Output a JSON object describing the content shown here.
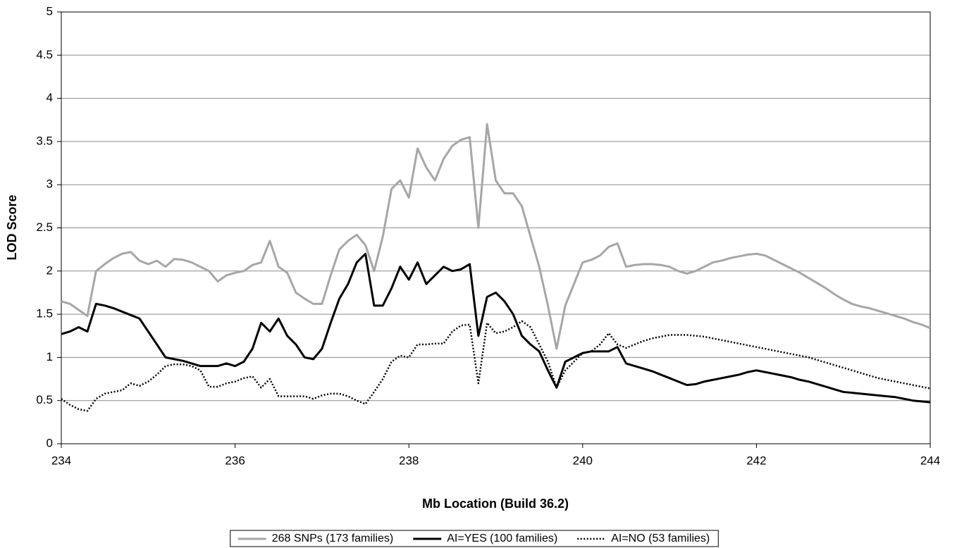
{
  "chart_data": {
    "type": "line",
    "x_label": "Mb Location (Build 36.2)",
    "y_label": "LOD Score",
    "xlim": [
      234,
      244
    ],
    "xticks": [
      234,
      236,
      238,
      240,
      242,
      244
    ],
    "ylim": [
      0,
      5
    ],
    "yticks": [
      0,
      0.5,
      1,
      1.5,
      2,
      2.5,
      3,
      3.5,
      4,
      4.5,
      5
    ],
    "grid": true,
    "legend": "bottom",
    "x": [
      234.0,
      234.1,
      234.2,
      234.3,
      234.4,
      234.5,
      234.6,
      234.7,
      234.8,
      234.9,
      235.0,
      235.1,
      235.2,
      235.3,
      235.4,
      235.5,
      235.6,
      235.7,
      235.8,
      235.9,
      236.0,
      236.1,
      236.2,
      236.3,
      236.4,
      236.5,
      236.6,
      236.7,
      236.8,
      236.9,
      237.0,
      237.1,
      237.2,
      237.3,
      237.4,
      237.5,
      237.6,
      237.7,
      237.8,
      237.9,
      238.0,
      238.1,
      238.2,
      238.3,
      238.4,
      238.5,
      238.6,
      238.7,
      238.8,
      238.9,
      239.0,
      239.1,
      239.2,
      239.3,
      239.4,
      239.5,
      239.6,
      239.7,
      239.8,
      239.9,
      240.0,
      240.1,
      240.2,
      240.3,
      240.4,
      240.5,
      240.6,
      240.7,
      240.8,
      240.9,
      241.0,
      241.1,
      241.2,
      241.3,
      241.4,
      241.5,
      241.6,
      241.7,
      241.8,
      241.9,
      242.0,
      242.1,
      242.2,
      242.3,
      242.4,
      242.5,
      242.6,
      242.7,
      242.8,
      242.9,
      243.0,
      243.1,
      243.2,
      243.3,
      243.4,
      243.5,
      243.6,
      243.7,
      243.8,
      243.9,
      244.0
    ],
    "series": [
      {
        "name": "268 SNPs (173 families)",
        "color": "#a6a6a6",
        "line_style": "solid",
        "values": [
          1.65,
          1.62,
          1.55,
          1.48,
          2.0,
          2.08,
          2.15,
          2.2,
          2.22,
          2.12,
          2.08,
          2.12,
          2.05,
          2.14,
          2.13,
          2.1,
          2.05,
          2.0,
          1.88,
          1.95,
          1.98,
          2.0,
          2.07,
          2.1,
          2.35,
          2.05,
          1.98,
          1.75,
          1.68,
          1.62,
          1.62,
          1.95,
          2.25,
          2.35,
          2.42,
          2.3,
          2.0,
          2.4,
          2.95,
          3.05,
          2.85,
          3.42,
          3.2,
          3.05,
          3.3,
          3.45,
          3.52,
          3.55,
          2.5,
          3.7,
          3.05,
          2.9,
          2.9,
          2.75,
          2.4,
          2.05,
          1.6,
          1.1,
          1.6,
          1.85,
          2.1,
          2.13,
          2.18,
          2.28,
          2.32,
          2.05,
          2.07,
          2.08,
          2.08,
          2.07,
          2.05,
          2.0,
          1.97,
          2.0,
          2.05,
          2.1,
          2.12,
          2.15,
          2.17,
          2.19,
          2.2,
          2.18,
          2.13,
          2.08,
          2.03,
          1.98,
          1.92,
          1.86,
          1.8,
          1.73,
          1.67,
          1.62,
          1.59,
          1.57,
          1.54,
          1.51,
          1.48,
          1.45,
          1.41,
          1.38,
          1.34
        ]
      },
      {
        "name": "AI=YES (100 families)",
        "color": "#000000",
        "line_style": "solid",
        "values": [
          1.27,
          1.3,
          1.35,
          1.3,
          1.62,
          1.6,
          1.57,
          1.53,
          1.49,
          1.45,
          1.3,
          1.15,
          1.0,
          0.98,
          0.96,
          0.93,
          0.9,
          0.9,
          0.9,
          0.93,
          0.9,
          0.95,
          1.1,
          1.4,
          1.3,
          1.45,
          1.25,
          1.15,
          1.0,
          0.98,
          1.1,
          1.4,
          1.68,
          1.85,
          2.1,
          2.2,
          1.6,
          1.6,
          1.8,
          2.05,
          1.9,
          2.1,
          1.85,
          1.95,
          2.05,
          2.0,
          2.02,
          2.08,
          1.25,
          1.7,
          1.75,
          1.65,
          1.5,
          1.25,
          1.15,
          1.07,
          0.85,
          0.65,
          0.95,
          1.0,
          1.05,
          1.07,
          1.07,
          1.07,
          1.12,
          0.93,
          0.9,
          0.87,
          0.84,
          0.8,
          0.76,
          0.72,
          0.68,
          0.69,
          0.72,
          0.74,
          0.76,
          0.78,
          0.8,
          0.83,
          0.85,
          0.83,
          0.81,
          0.79,
          0.77,
          0.74,
          0.72,
          0.69,
          0.66,
          0.63,
          0.6,
          0.59,
          0.58,
          0.57,
          0.56,
          0.55,
          0.54,
          0.52,
          0.5,
          0.49,
          0.48
        ]
      },
      {
        "name": "AI=NO (53 families)",
        "color": "#000000",
        "line_style": "dotted",
        "values": [
          0.52,
          0.45,
          0.4,
          0.38,
          0.52,
          0.58,
          0.6,
          0.62,
          0.7,
          0.67,
          0.72,
          0.8,
          0.9,
          0.92,
          0.92,
          0.9,
          0.85,
          0.66,
          0.66,
          0.7,
          0.72,
          0.76,
          0.78,
          0.65,
          0.75,
          0.55,
          0.55,
          0.55,
          0.55,
          0.52,
          0.56,
          0.58,
          0.58,
          0.55,
          0.5,
          0.46,
          0.6,
          0.75,
          0.95,
          1.02,
          1.0,
          1.15,
          1.15,
          1.16,
          1.16,
          1.3,
          1.37,
          1.38,
          0.7,
          1.4,
          1.28,
          1.3,
          1.35,
          1.42,
          1.35,
          1.15,
          0.95,
          0.65,
          0.85,
          0.95,
          1.05,
          1.07,
          1.15,
          1.28,
          1.15,
          1.11,
          1.15,
          1.19,
          1.22,
          1.24,
          1.26,
          1.26,
          1.26,
          1.25,
          1.24,
          1.22,
          1.2,
          1.18,
          1.16,
          1.14,
          1.12,
          1.1,
          1.08,
          1.06,
          1.04,
          1.02,
          1.0,
          0.97,
          0.94,
          0.91,
          0.88,
          0.85,
          0.82,
          0.79,
          0.76,
          0.74,
          0.72,
          0.7,
          0.68,
          0.66,
          0.64
        ]
      }
    ]
  }
}
